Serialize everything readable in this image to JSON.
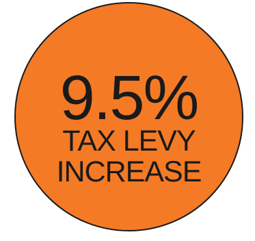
{
  "badge": {
    "fill_color": "#F47A25",
    "outline_color": "#1A1A1A",
    "headline": "9.5%",
    "line_1": "TAX LEVY",
    "line_2": "INCREASE"
  }
}
